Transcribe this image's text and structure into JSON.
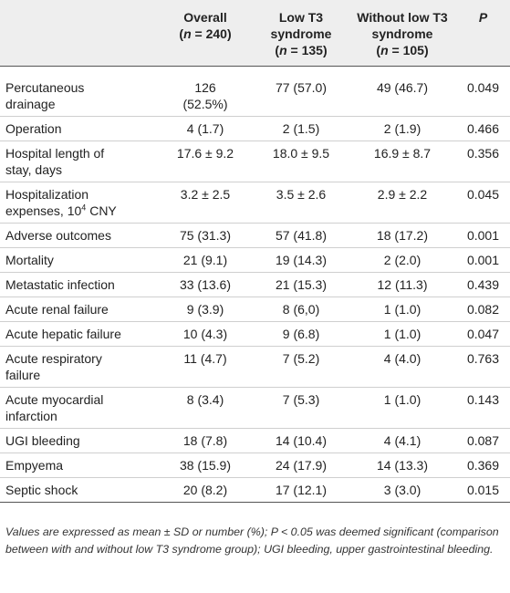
{
  "header": {
    "col0": "",
    "overall_l1": "Overall",
    "overall_n": "(n = 240)",
    "low_l1": "Low T3",
    "low_l2": "syndrome",
    "low_n": "(n = 135)",
    "without_l1": "Without low T3",
    "without_l2": "syndrome",
    "without_n": "(n = 105)",
    "p": "P"
  },
  "rows": [
    {
      "label_a": "Percutaneous",
      "label_b": "drainage",
      "overall_a": "126",
      "overall_b": "(52.5%)",
      "low": "77 (57.0)",
      "without": "49 (46.7)",
      "p": "0.049"
    },
    {
      "label_a": "Operation",
      "overall_a": "4 (1.7)",
      "low": "2 (1.5)",
      "without": "2 (1.9)",
      "p": "0.466"
    },
    {
      "label_a": "Hospital length of",
      "label_b": "stay, days",
      "overall_a": "17.6 ± 9.2",
      "low": "18.0 ± 9.5",
      "without": "16.9 ± 8.7",
      "p": "0.356"
    },
    {
      "label_a": "Hospitalization",
      "label_b_pre": "expenses, 10",
      "label_b_sup": "4",
      "label_b_post": " CNY",
      "overall_a": "3.2 ± 2.5",
      "low": "3.5 ± 2.6",
      "without": "2.9 ± 2.2",
      "p": "0.045"
    },
    {
      "label_a": "Adverse outcomes",
      "overall_a": "75 (31.3)",
      "low": "57 (41.8)",
      "without": "18 (17.2)",
      "p": "0.001"
    },
    {
      "label_a": "Mortality",
      "overall_a": "21 (9.1)",
      "low": "19 (14.3)",
      "without": "2 (2.0)",
      "p": "0.001"
    },
    {
      "label_a": "Metastatic infection",
      "overall_a": "33 (13.6)",
      "low": "21 (15.3)",
      "without": "12 (11.3)",
      "p": "0.439"
    },
    {
      "label_a": "Acute renal failure",
      "overall_a": "9 (3.9)",
      "low": "8 (6,0)",
      "without": "1 (1.0)",
      "p": "0.082"
    },
    {
      "label_a": "Acute hepatic failure",
      "overall_a": "10 (4.3)",
      "low": "9 (6.8)",
      "without": "1 (1.0)",
      "p": "0.047"
    },
    {
      "label_a": "Acute respiratory",
      "label_b": "failure",
      "overall_a": "11 (4.7)",
      "low": "7 (5.2)",
      "without": "4 (4.0)",
      "p": "0.763"
    },
    {
      "label_a": "Acute myocardial",
      "label_b": "infarction",
      "overall_a": "8 (3.4)",
      "low": "7 (5.3)",
      "without": "1 (1.0)",
      "p": "0.143"
    },
    {
      "label_a": "UGI bleeding",
      "overall_a": "18 (7.8)",
      "low": "14 (10.4)",
      "without": "4 (4.1)",
      "p": "0.087"
    },
    {
      "label_a": "Empyema",
      "overall_a": "38 (15.9)",
      "low": "24 (17.9)",
      "without": "14 (13.3)",
      "p": "0.369"
    },
    {
      "label_a": "Septic shock",
      "overall_a": "20 (8.2)",
      "low": "17 (12.1)",
      "without": "3 (3.0)",
      "p": "0.015"
    }
  ],
  "footnote": "Values are expressed as mean ± SD or number (%); P < 0.05 was deemed significant (comparison between with and without low T3 syndrome group); UGI bleeding, upper gastrointestinal bleeding."
}
